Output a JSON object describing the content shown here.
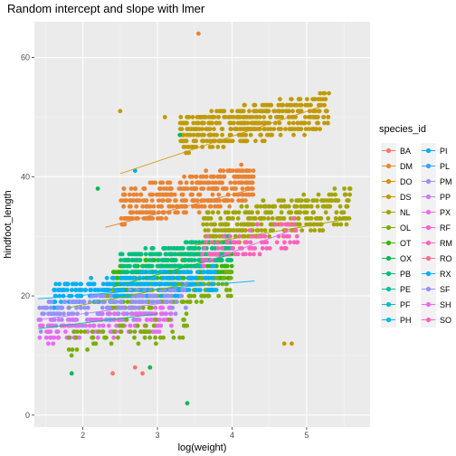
{
  "chart_data": {
    "type": "scatter",
    "title": "Random intercept and slope with lmer",
    "xlabel": "log(weight)",
    "ylabel": "hindfoot_length",
    "xlim": [
      1.35,
      5.85
    ],
    "ylim": [
      -2,
      66
    ],
    "x_ticks": [
      2,
      3,
      4,
      5
    ],
    "y_ticks": [
      0,
      20,
      40,
      60
    ],
    "grid": true,
    "legend": {
      "title": "species_id",
      "position": "right",
      "entries": [
        {
          "name": "BA",
          "color": "#F8766D"
        },
        {
          "name": "DM",
          "color": "#EA8331"
        },
        {
          "name": "DO",
          "color": "#D89000"
        },
        {
          "name": "DS",
          "color": "#C09B00"
        },
        {
          "name": "NL",
          "color": "#A3A500"
        },
        {
          "name": "OL",
          "color": "#7CAE00"
        },
        {
          "name": "OT",
          "color": "#39B600"
        },
        {
          "name": "OX",
          "color": "#00BB4E"
        },
        {
          "name": "PB",
          "color": "#00BF7D"
        },
        {
          "name": "PE",
          "color": "#00C1A3"
        },
        {
          "name": "PF",
          "color": "#00BFC4"
        },
        {
          "name": "PH",
          "color": "#00BAE0"
        },
        {
          "name": "PI",
          "color": "#00B0F6"
        },
        {
          "name": "PL",
          "color": "#35A2FF"
        },
        {
          "name": "PM",
          "color": "#9590FF"
        },
        {
          "name": "PP",
          "color": "#C77CFF"
        },
        {
          "name": "PX",
          "color": "#E76BF3"
        },
        {
          "name": "RF",
          "color": "#FA62DB"
        },
        {
          "name": "RM",
          "color": "#FF62BC"
        },
        {
          "name": "RO",
          "color": "#FF6C91"
        },
        {
          "name": "RX",
          "color": "#00B0F6"
        },
        {
          "name": "SF",
          "color": "#9590FF"
        },
        {
          "name": "SH",
          "color": "#E76BF3"
        },
        {
          "name": "SO",
          "color": "#FF62BC"
        }
      ]
    },
    "clusters": [
      {
        "species": "DS",
        "color": "#C09B00",
        "x": [
          3.3,
          5.3
        ],
        "y": [
          44,
          54
        ],
        "n": 420
      },
      {
        "species": "DM",
        "color": "#EA8331",
        "x": [
          2.5,
          4.3
        ],
        "y": [
          32,
          42
        ],
        "n": 380
      },
      {
        "species": "NL",
        "color": "#A3A500",
        "x": [
          3.6,
          5.6
        ],
        "y": [
          28,
          38
        ],
        "n": 320
      },
      {
        "species": "OT",
        "color": "#39B600",
        "x": [
          2.4,
          4.0
        ],
        "y": [
          20,
          28
        ],
        "n": 260
      },
      {
        "species": "OL",
        "color": "#7CAE00",
        "x": [
          2.3,
          4.0
        ],
        "y": [
          17,
          24
        ],
        "n": 180
      },
      {
        "species": "PB",
        "color": "#00BF7D",
        "x": [
          2.5,
          4.0
        ],
        "y": [
          23,
          30
        ],
        "n": 280
      },
      {
        "species": "PP",
        "color": "#00B0F6",
        "x": [
          1.6,
          3.8
        ],
        "y": [
          18,
          25
        ],
        "n": 300
      },
      {
        "species": "PE",
        "color": "#9590FF",
        "x": [
          1.4,
          3.4
        ],
        "y": [
          14,
          22
        ],
        "n": 200
      },
      {
        "species": "RM",
        "color": "#E76BF3",
        "x": [
          1.4,
          3.2
        ],
        "y": [
          12,
          18
        ],
        "n": 150
      },
      {
        "species": "SH",
        "color": "#FF62BC",
        "x": [
          3.6,
          4.9
        ],
        "y": [
          25,
          33
        ],
        "n": 90
      },
      {
        "species": "PF",
        "color": "#7CAE00",
        "x": [
          1.8,
          3.4
        ],
        "y": [
          10,
          17
        ],
        "n": 60
      }
    ],
    "outliers": [
      {
        "x": 3.55,
        "y": 64,
        "color": "#EA8331"
      },
      {
        "x": 2.5,
        "y": 51,
        "color": "#C09B00"
      },
      {
        "x": 3.1,
        "y": 50,
        "color": "#C09B00"
      },
      {
        "x": 3.3,
        "y": 47,
        "color": "#00BB4E"
      },
      {
        "x": 2.2,
        "y": 38,
        "color": "#00BB4E"
      },
      {
        "x": 2.7,
        "y": 41,
        "color": "#00B0F6"
      },
      {
        "x": 3.4,
        "y": 2,
        "color": "#00BB4E"
      },
      {
        "x": 4.7,
        "y": 12,
        "color": "#C09B00"
      },
      {
        "x": 4.8,
        "y": 12,
        "color": "#C09B00"
      },
      {
        "x": 2.8,
        "y": 7,
        "color": "#F8766D"
      },
      {
        "x": 2.4,
        "y": 7,
        "color": "#F8766D"
      },
      {
        "x": 1.85,
        "y": 7,
        "color": "#00BB4E"
      },
      {
        "x": 2.7,
        "y": 8,
        "color": "#F8766D"
      },
      {
        "x": 2.9,
        "y": 8,
        "color": "#00BB4E"
      }
    ],
    "fit_lines": [
      {
        "color": "#D89000",
        "x": [
          2.5,
          5.25
        ],
        "y": [
          40.5,
          52
        ]
      },
      {
        "color": "#EA8331",
        "x": [
          2.3,
          4.3
        ],
        "y": [
          31.5,
          38
        ]
      },
      {
        "color": "#A3A500",
        "x": [
          3.5,
          5.6
        ],
        "y": [
          28.5,
          33
        ]
      },
      {
        "color": "#00BB4E",
        "x": [
          2.4,
          4.0
        ],
        "y": [
          21.5,
          27
        ]
      },
      {
        "color": "#00B0F6",
        "x": [
          1.4,
          4.3
        ],
        "y": [
          19.5,
          22.5
        ]
      },
      {
        "color": "#C77CFF",
        "x": [
          1.4,
          3.2
        ],
        "y": [
          16,
          19
        ]
      },
      {
        "color": "#00BF7D",
        "x": [
          1.4,
          3.0
        ],
        "y": [
          14.5,
          17
        ]
      },
      {
        "color": "#E76BF3",
        "x": [
          3.6,
          4.8
        ],
        "y": [
          25.5,
          31
        ]
      },
      {
        "color": "#7CAE00",
        "x": [
          1.8,
          3.4
        ],
        "y": [
          18,
          22
        ]
      }
    ]
  }
}
